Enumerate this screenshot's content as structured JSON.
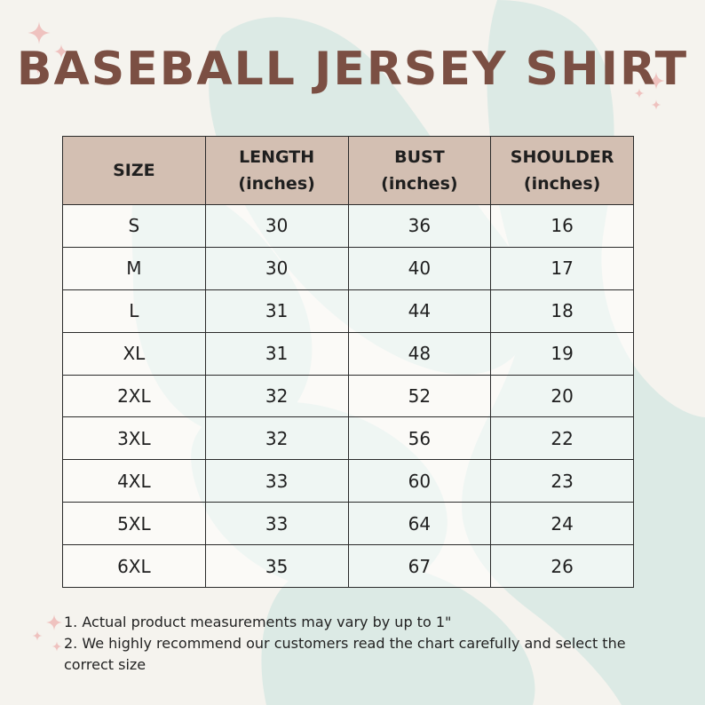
{
  "page": {
    "title": "BASEBALL JERSEY SHIRT",
    "colors": {
      "background": "#f5f3ee",
      "title": "#7b4f43",
      "header_fill": "#d3bfb2",
      "blob": "#dceae5",
      "sparkle": "#efc2bf"
    },
    "decor": {
      "sparkle_icon": "four-point-star",
      "blob": "teal-leaf-shapes"
    }
  },
  "table": {
    "headers": [
      {
        "line1": "SIZE",
        "line2": ""
      },
      {
        "line1": "LENGTH",
        "line2": "(inches)"
      },
      {
        "line1": "BUST",
        "line2": "(inches)"
      },
      {
        "line1": "SHOULDER",
        "line2": "(inches)"
      }
    ],
    "rows": [
      [
        "S",
        "30",
        "36",
        "16"
      ],
      [
        "M",
        "30",
        "40",
        "17"
      ],
      [
        "L",
        "31",
        "44",
        "18"
      ],
      [
        "XL",
        "31",
        "48",
        "19"
      ],
      [
        "2XL",
        "32",
        "52",
        "20"
      ],
      [
        "3XL",
        "32",
        "56",
        "22"
      ],
      [
        "4XL",
        "33",
        "60",
        "23"
      ],
      [
        "5XL",
        "33",
        "64",
        "24"
      ],
      [
        "6XL",
        "35",
        "67",
        "26"
      ]
    ]
  },
  "notes": [
    "1. Actual product measurements may vary by up to 1\"",
    "2. We highly recommend our customers read the chart carefully and select the correct size"
  ]
}
